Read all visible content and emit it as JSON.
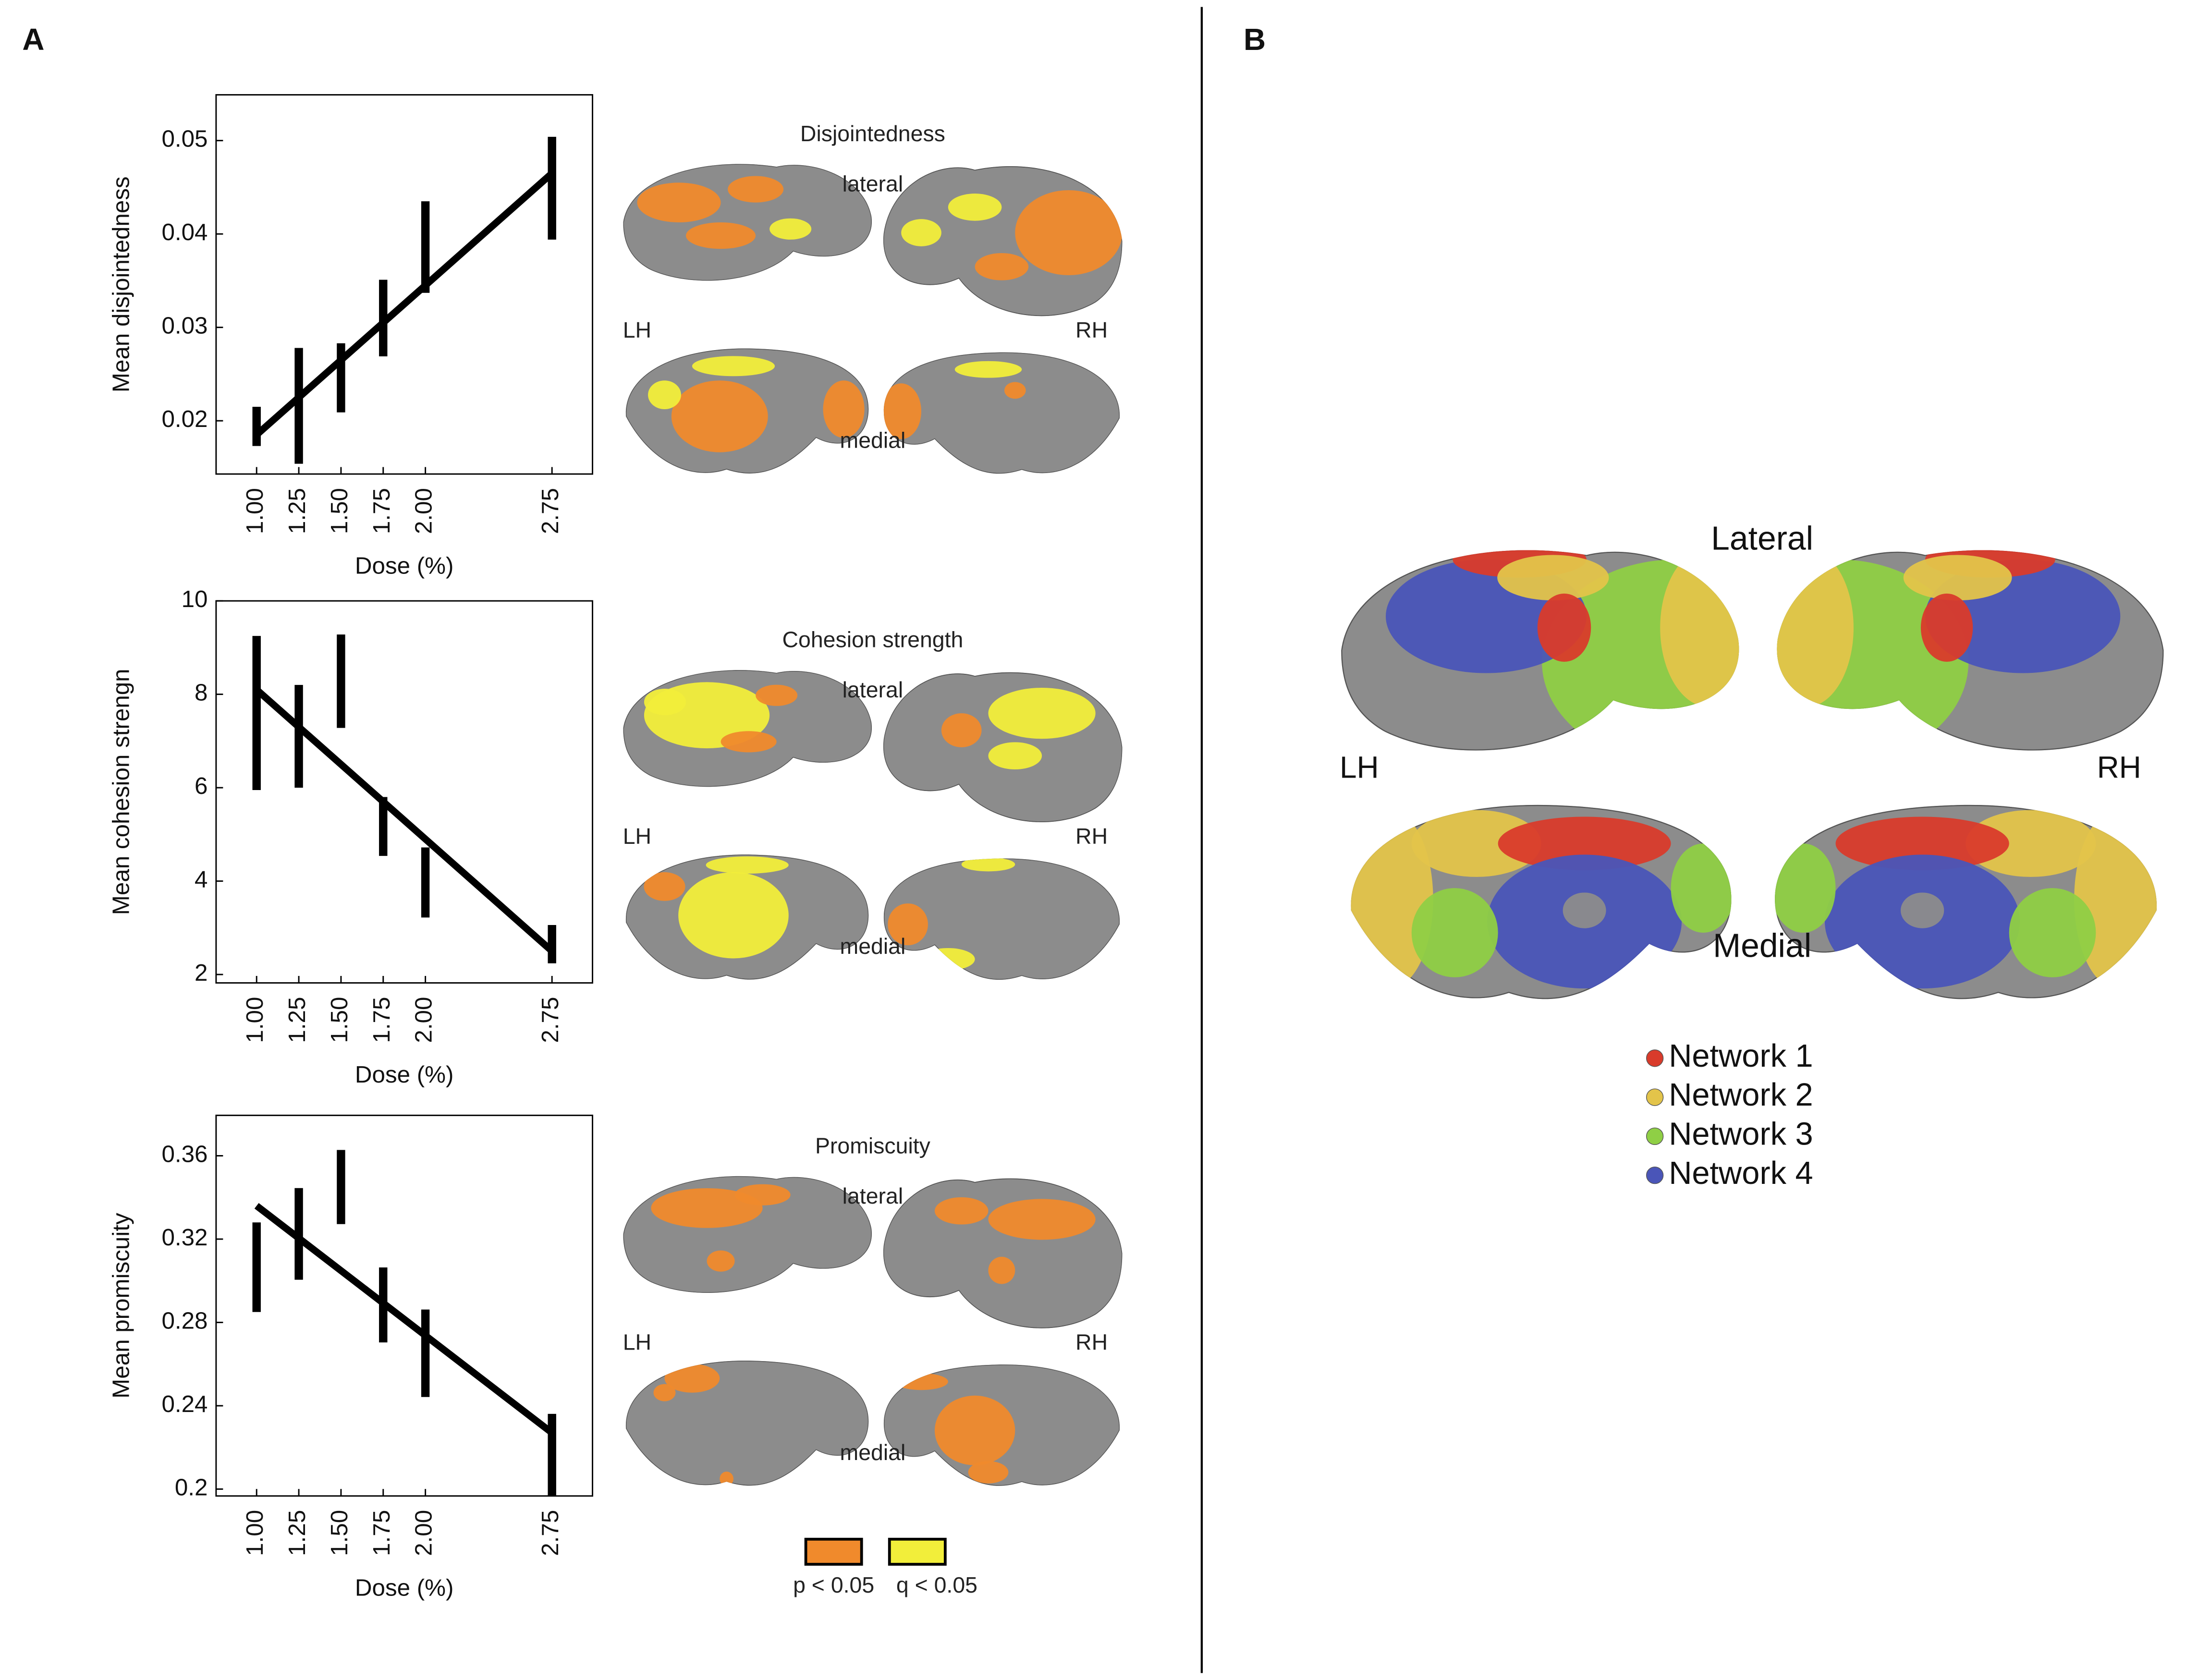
{
  "figure": {
    "panel_a": "A",
    "panel_b": "B",
    "brains_a": [
      {
        "title": "Disjointedness",
        "lateral": "lateral",
        "medial": "medial",
        "lh": "LH",
        "rh": "RH"
      },
      {
        "title": "Cohesion strength",
        "lateral": "lateral",
        "medial": "medial",
        "lh": "LH",
        "rh": "RH"
      },
      {
        "title": "Promiscuity",
        "lateral": "lateral",
        "medial": "medial",
        "lh": "LH",
        "rh": "RH"
      }
    ],
    "significance_legend": [
      {
        "name": "p < 0.05",
        "color": "#f08a2c"
      },
      {
        "name": "q < 0.05",
        "color": "#f2ee3a"
      }
    ],
    "brains_b": {
      "lateral": "Lateral",
      "medial": "Medial",
      "lh": "LH",
      "rh": "RH"
    },
    "networks": [
      {
        "name": "Network 1",
        "color": "#d93b2b"
      },
      {
        "name": "Network 2",
        "color": "#e3c44a"
      },
      {
        "name": "Network 3",
        "color": "#8fcf45"
      },
      {
        "name": "Network 4",
        "color": "#4a55b8"
      }
    ]
  },
  "chart_data": [
    {
      "type": "errorbar",
      "ylabel": "Mean disjointedness",
      "xlabel": "Dose (%)",
      "color": "#000000",
      "x": [
        1.0,
        1.25,
        1.5,
        1.75,
        2.0,
        2.75
      ],
      "values": [
        0.0194,
        0.0216,
        0.0246,
        0.031,
        0.0386,
        0.0449
      ],
      "errors": [
        0.0021,
        0.0062,
        0.0037,
        0.0041,
        0.0049,
        0.0055
      ],
      "fit_x": [
        1.0,
        2.75
      ],
      "fit_values": [
        0.0185,
        0.0465
      ],
      "xlim": [
        0.76,
        2.99
      ],
      "xticks": [
        {
          "value": 1.0,
          "label": "1.00"
        },
        {
          "value": 1.25,
          "label": "1.25"
        },
        {
          "value": 1.5,
          "label": "1.50"
        },
        {
          "value": 1.75,
          "label": "1.75"
        },
        {
          "value": 2.0,
          "label": "2.00"
        },
        {
          "value": 2.75,
          "label": "2.75"
        }
      ],
      "ylim": [
        0.0143,
        0.0549
      ],
      "yticks": [
        0.02,
        0.03,
        0.04,
        0.05
      ]
    },
    {
      "type": "errorbar",
      "ylabel": "Mean cohesion strengn",
      "xlabel": "Dose (%)",
      "color": "#000000",
      "x": [
        1.0,
        1.25,
        1.5,
        1.75,
        2.0,
        2.75
      ],
      "values": [
        7.6,
        7.1,
        8.28,
        5.17,
        3.97,
        2.65
      ],
      "errors": [
        1.65,
        1.1,
        1.0,
        0.63,
        0.75,
        0.41
      ],
      "fit_x": [
        1.0,
        2.75
      ],
      "fit_values": [
        8.1,
        2.5
      ],
      "xlim": [
        0.76,
        2.99
      ],
      "xticks": [
        {
          "value": 1.0,
          "label": "1.00"
        },
        {
          "value": 1.25,
          "label": "1.25"
        },
        {
          "value": 1.5,
          "label": "1.50"
        },
        {
          "value": 1.75,
          "label": "1.75"
        },
        {
          "value": 2.0,
          "label": "2.00"
        },
        {
          "value": 2.75,
          "label": "2.75"
        }
      ],
      "ylim": [
        1.82,
        10
      ],
      "yticks": [
        2,
        4,
        6,
        8,
        10
      ]
    },
    {
      "type": "errorbar",
      "ylabel": "Mean promiscuity",
      "xlabel": "Dose (%)",
      "color": "#000000",
      "x": [
        1.0,
        1.25,
        1.5,
        1.75,
        2.0,
        2.75
      ],
      "values": [
        0.3065,
        0.3225,
        0.345,
        0.2884,
        0.2652,
        0.2164
      ],
      "errors": [
        0.0215,
        0.022,
        0.0178,
        0.018,
        0.021,
        0.0197
      ],
      "fit_x": [
        1.0,
        2.75
      ],
      "fit_values": [
        0.336,
        0.227
      ],
      "xlim": [
        0.76,
        2.99
      ],
      "xticks": [
        {
          "value": 1.0,
          "label": "1.00"
        },
        {
          "value": 1.25,
          "label": "1.25"
        },
        {
          "value": 1.5,
          "label": "1.50"
        },
        {
          "value": 1.75,
          "label": "1.75"
        },
        {
          "value": 2.0,
          "label": "2.00"
        },
        {
          "value": 2.75,
          "label": "2.75"
        }
      ],
      "ylim": [
        0.1967,
        0.3794
      ],
      "yticks": [
        0.2,
        0.24,
        0.28,
        0.32,
        0.36
      ]
    }
  ]
}
